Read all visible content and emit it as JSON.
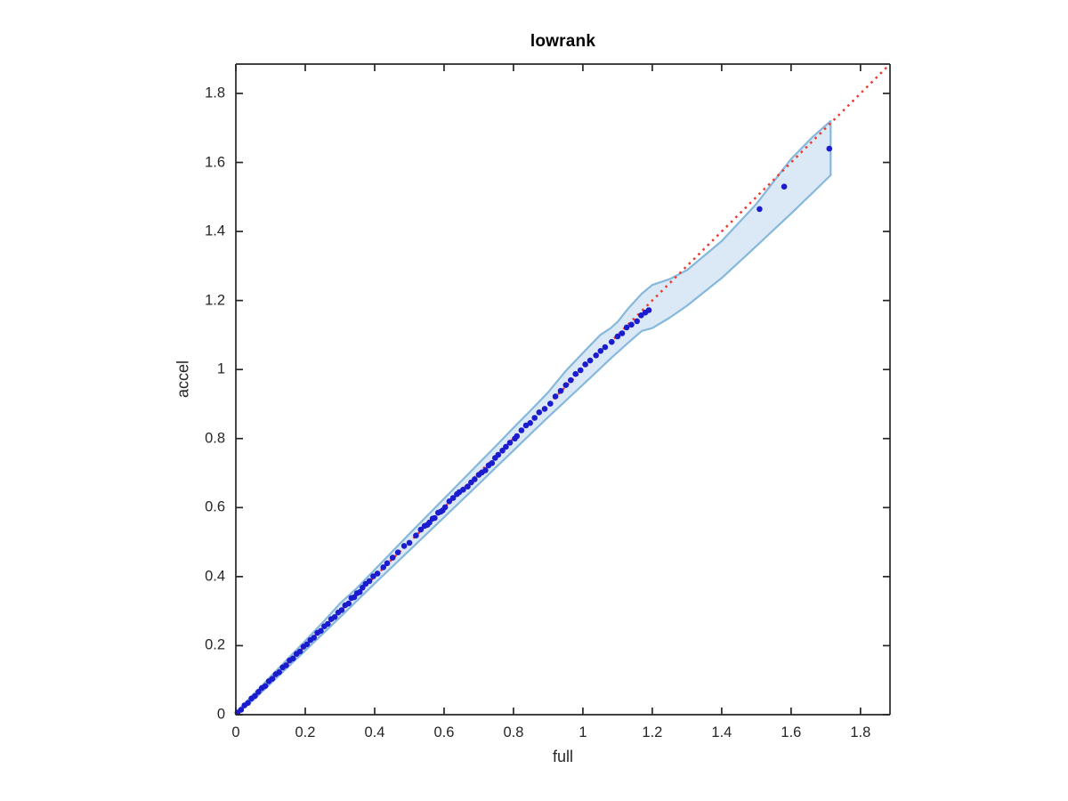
{
  "chart": {
    "title": "lowrank",
    "xlabel": "full",
    "ylabel": "accel"
  },
  "axis": {
    "x_tick_labels": [
      "0",
      "0.2",
      "0.4",
      "0.6",
      "0.8",
      "1",
      "1.2",
      "1.4",
      "1.6",
      "1.8"
    ],
    "y_tick_labels": [
      "0",
      "0.2",
      "0.4",
      "0.6",
      "0.8",
      "1",
      "1.2",
      "1.4",
      "1.6",
      "1.8"
    ],
    "x_tick_values": [
      0,
      0.2,
      0.4,
      0.6,
      0.8,
      1.0,
      1.2,
      1.4,
      1.6,
      1.8
    ],
    "y_tick_values": [
      0,
      0.2,
      0.4,
      0.6,
      0.8,
      1.0,
      1.2,
      1.4,
      1.6,
      1.8
    ]
  },
  "colors": {
    "marker_blue": "#1c1ccf",
    "reference_red": "#f0382c",
    "band_fill": "#dbe8f5",
    "band_edge": "#86b8dc",
    "axis": "#262626",
    "text": "#262626",
    "title": "#000000",
    "background": "#ffffff"
  },
  "chart_data": {
    "type": "scatter",
    "title": "lowrank",
    "xlabel": "full",
    "ylabel": "accel",
    "xlim": [
      0,
      1.885
    ],
    "ylim": [
      0,
      1.885
    ],
    "grid": false,
    "legend": "none",
    "reference_line": {
      "style": "dotted",
      "color": "#f0382c",
      "from": [
        0,
        0
      ],
      "to": [
        1.885,
        1.885
      ],
      "meaning": "y = x identity line"
    },
    "band": {
      "description": "shaded envelope around points, columns: x, y_upper, y_lower",
      "fill": "#dbe8f5",
      "edge": "#86b8dc",
      "points": [
        [
          0.0,
          0.006,
          0.0
        ],
        [
          0.05,
          0.058,
          0.042
        ],
        [
          0.1,
          0.11,
          0.09
        ],
        [
          0.15,
          0.162,
          0.138
        ],
        [
          0.2,
          0.214,
          0.186
        ],
        [
          0.25,
          0.267,
          0.234
        ],
        [
          0.3,
          0.322,
          0.282
        ],
        [
          0.35,
          0.368,
          0.331
        ],
        [
          0.4,
          0.42,
          0.38
        ],
        [
          0.45,
          0.472,
          0.428
        ],
        [
          0.5,
          0.524,
          0.476
        ],
        [
          0.55,
          0.575,
          0.524
        ],
        [
          0.6,
          0.626,
          0.572
        ],
        [
          0.65,
          0.677,
          0.62
        ],
        [
          0.7,
          0.728,
          0.668
        ],
        [
          0.75,
          0.779,
          0.717
        ],
        [
          0.8,
          0.831,
          0.765
        ],
        [
          0.85,
          0.882,
          0.814
        ],
        [
          0.9,
          0.934,
          0.862
        ],
        [
          0.95,
          0.995,
          0.909
        ],
        [
          1.0,
          1.048,
          0.956
        ],
        [
          1.05,
          1.1,
          1.003
        ],
        [
          1.08,
          1.12,
          1.032
        ],
        [
          1.1,
          1.138,
          1.05
        ],
        [
          1.13,
          1.176,
          1.077
        ],
        [
          1.17,
          1.22,
          1.112
        ],
        [
          1.2,
          1.245,
          1.12
        ],
        [
          1.25,
          1.262,
          1.15
        ],
        [
          1.3,
          1.288,
          1.185
        ],
        [
          1.4,
          1.372,
          1.265
        ],
        [
          1.5,
          1.48,
          1.358
        ],
        [
          1.6,
          1.61,
          1.452
        ],
        [
          1.66,
          1.672,
          1.51
        ],
        [
          1.714,
          1.72,
          1.563
        ]
      ]
    },
    "points": [
      [
        0.005,
        0.006
      ],
      [
        0.015,
        0.014
      ],
      [
        0.025,
        0.027
      ],
      [
        0.035,
        0.034
      ],
      [
        0.045,
        0.047
      ],
      [
        0.055,
        0.054
      ],
      [
        0.065,
        0.066
      ],
      [
        0.075,
        0.077
      ],
      [
        0.085,
        0.083
      ],
      [
        0.095,
        0.097
      ],
      [
        0.105,
        0.104
      ],
      [
        0.115,
        0.117
      ],
      [
        0.125,
        0.123
      ],
      [
        0.135,
        0.137
      ],
      [
        0.145,
        0.143
      ],
      [
        0.155,
        0.157
      ],
      [
        0.165,
        0.163
      ],
      [
        0.175,
        0.176
      ],
      [
        0.185,
        0.183
      ],
      [
        0.195,
        0.197
      ],
      [
        0.205,
        0.204
      ],
      [
        0.215,
        0.216
      ],
      [
        0.225,
        0.223
      ],
      [
        0.235,
        0.237
      ],
      [
        0.245,
        0.243
      ],
      [
        0.255,
        0.256
      ],
      [
        0.265,
        0.263
      ],
      [
        0.275,
        0.277
      ],
      [
        0.285,
        0.283
      ],
      [
        0.295,
        0.296
      ],
      [
        0.305,
        0.303
      ],
      [
        0.315,
        0.317
      ],
      [
        0.325,
        0.322
      ],
      [
        0.333,
        0.338
      ],
      [
        0.341,
        0.34
      ],
      [
        0.349,
        0.352
      ],
      [
        0.357,
        0.355
      ],
      [
        0.365,
        0.368
      ],
      [
        0.374,
        0.379
      ],
      [
        0.385,
        0.387
      ],
      [
        0.396,
        0.401
      ],
      [
        0.408,
        0.409
      ],
      [
        0.425,
        0.427
      ],
      [
        0.436,
        0.439
      ],
      [
        0.452,
        0.455
      ],
      [
        0.467,
        0.47
      ],
      [
        0.485,
        0.489
      ],
      [
        0.5,
        0.498
      ],
      [
        0.519,
        0.519
      ],
      [
        0.533,
        0.536
      ],
      [
        0.544,
        0.547
      ],
      [
        0.552,
        0.55
      ],
      [
        0.558,
        0.557
      ],
      [
        0.567,
        0.568
      ],
      [
        0.573,
        0.57
      ],
      [
        0.583,
        0.585
      ],
      [
        0.59,
        0.588
      ],
      [
        0.596,
        0.592
      ],
      [
        0.603,
        0.601
      ],
      [
        0.615,
        0.618
      ],
      [
        0.626,
        0.628
      ],
      [
        0.637,
        0.639
      ],
      [
        0.644,
        0.645
      ],
      [
        0.655,
        0.652
      ],
      [
        0.668,
        0.661
      ],
      [
        0.678,
        0.673
      ],
      [
        0.688,
        0.682
      ],
      [
        0.7,
        0.695
      ],
      [
        0.709,
        0.702
      ],
      [
        0.719,
        0.708
      ],
      [
        0.728,
        0.722
      ],
      [
        0.738,
        0.729
      ],
      [
        0.747,
        0.744
      ],
      [
        0.756,
        0.753
      ],
      [
        0.768,
        0.765
      ],
      [
        0.778,
        0.776
      ],
      [
        0.79,
        0.788
      ],
      [
        0.804,
        0.8
      ],
      [
        0.81,
        0.807
      ],
      [
        0.823,
        0.824
      ],
      [
        0.836,
        0.838
      ],
      [
        0.848,
        0.845
      ],
      [
        0.861,
        0.86
      ],
      [
        0.874,
        0.876
      ],
      [
        0.89,
        0.886
      ],
      [
        0.906,
        0.901
      ],
      [
        0.921,
        0.922
      ],
      [
        0.936,
        0.938
      ],
      [
        0.951,
        0.955
      ],
      [
        0.965,
        0.969
      ],
      [
        0.979,
        0.987
      ],
      [
        0.993,
        0.998
      ],
      [
        1.007,
        1.015
      ],
      [
        1.021,
        1.026
      ],
      [
        1.038,
        1.041
      ],
      [
        1.051,
        1.054
      ],
      [
        1.064,
        1.065
      ],
      [
        1.083,
        1.08
      ],
      [
        1.1,
        1.096
      ],
      [
        1.113,
        1.105
      ],
      [
        1.126,
        1.122
      ],
      [
        1.14,
        1.13
      ],
      [
        1.156,
        1.14
      ],
      [
        1.168,
        1.157
      ],
      [
        1.18,
        1.165
      ],
      [
        1.19,
        1.172
      ],
      [
        1.509,
        1.465
      ],
      [
        1.58,
        1.53
      ],
      [
        1.71,
        1.64
      ]
    ]
  }
}
